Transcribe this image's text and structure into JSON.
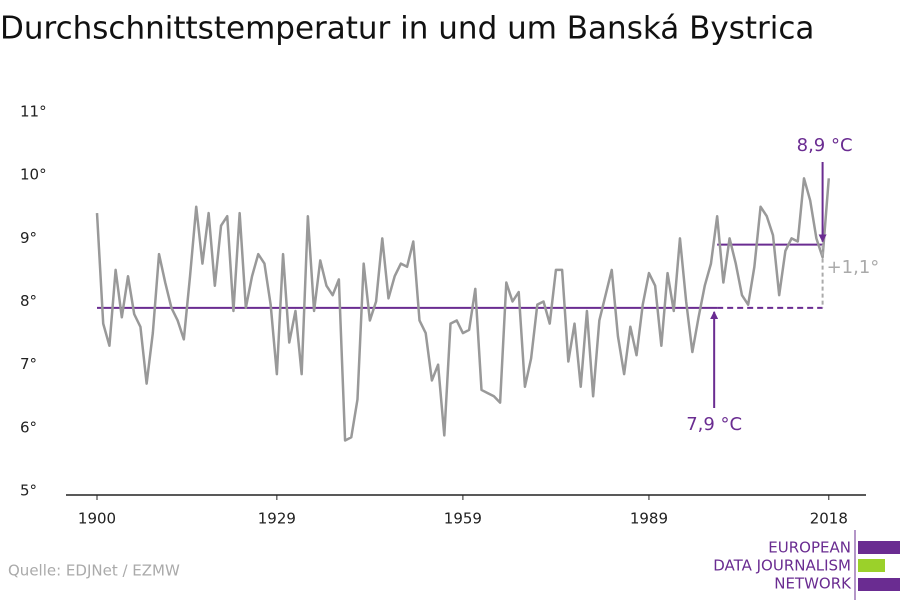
{
  "chart_data": {
    "type": "line",
    "title": "Durchschnittstemperatur in und um Banská Bystrica",
    "x": [
      1900,
      1901,
      1902,
      1903,
      1904,
      1905,
      1906,
      1907,
      1908,
      1909,
      1910,
      1911,
      1912,
      1913,
      1914,
      1915,
      1916,
      1917,
      1918,
      1919,
      1920,
      1921,
      1922,
      1923,
      1924,
      1925,
      1926,
      1927,
      1928,
      1929,
      1930,
      1931,
      1932,
      1933,
      1934,
      1935,
      1936,
      1937,
      1938,
      1939,
      1940,
      1941,
      1942,
      1943,
      1944,
      1945,
      1946,
      1947,
      1948,
      1949,
      1950,
      1951,
      1952,
      1953,
      1954,
      1955,
      1956,
      1957,
      1958,
      1959,
      1960,
      1961,
      1962,
      1963,
      1964,
      1965,
      1966,
      1967,
      1968,
      1969,
      1970,
      1971,
      1972,
      1973,
      1974,
      1975,
      1976,
      1977,
      1978,
      1979,
      1980,
      1981,
      1982,
      1983,
      1984,
      1985,
      1986,
      1987,
      1988,
      1989,
      1990,
      1991,
      1992,
      1993,
      1994,
      1995,
      1996,
      1997,
      1998,
      1999,
      2000,
      2001,
      2002,
      2003,
      2004,
      2005,
      2006,
      2007,
      2008,
      2009,
      2010,
      2011,
      2012,
      2013,
      2014,
      2015,
      2016,
      2017,
      2018
    ],
    "series": [
      {
        "color": "#999999",
        "values": [
          9.4,
          7.65,
          7.3,
          8.5,
          7.75,
          8.4,
          7.8,
          7.6,
          6.7,
          7.5,
          8.75,
          8.3,
          7.9,
          7.7,
          7.4,
          8.4,
          9.5,
          8.6,
          9.4,
          8.25,
          9.2,
          9.35,
          7.85,
          9.4,
          7.9,
          8.4,
          8.75,
          8.6,
          7.95,
          6.85,
          8.75,
          7.35,
          7.85,
          6.85,
          9.35,
          7.85,
          8.65,
          8.25,
          8.1,
          8.35,
          5.8,
          5.85,
          6.45,
          8.6,
          7.7,
          8.0,
          9.0,
          8.05,
          8.4,
          8.6,
          8.55,
          8.95,
          7.7,
          7.5,
          6.75,
          7.0,
          5.88,
          7.65,
          7.7,
          7.5,
          7.55,
          8.2,
          6.6,
          6.55,
          6.5,
          6.4,
          8.3,
          8.0,
          8.15,
          6.65,
          7.1,
          7.95,
          8.0,
          7.65,
          8.5,
          8.5,
          7.05,
          7.65,
          6.65,
          7.85,
          6.5,
          7.7,
          8.1,
          8.5,
          7.45,
          6.85,
          7.6,
          7.15,
          7.95,
          8.45,
          8.25,
          7.3,
          8.45,
          7.85,
          9.0,
          8.0,
          7.2,
          7.75,
          8.25,
          8.6,
          9.35,
          8.3,
          9.0,
          8.6,
          8.1,
          7.95,
          8.55,
          9.5,
          9.35,
          9.05,
          8.1,
          8.8,
          9.0,
          8.95,
          9.95,
          9.6,
          9.0,
          8.7,
          9.95
        ]
      }
    ],
    "xlim": [
      1895,
      2024
    ],
    "xticks": [
      1900,
      1929,
      1959,
      1989,
      2018
    ],
    "ylim": [
      5,
      11
    ],
    "yticks": [
      {
        "value": 5,
        "label": "5°"
      },
      {
        "value": 6,
        "label": "6°"
      },
      {
        "value": 7,
        "label": "7°"
      },
      {
        "value": 8,
        "label": "8°"
      },
      {
        "value": 9,
        "label": "9°"
      },
      {
        "value": 10,
        "label": "10°"
      },
      {
        "value": 11,
        "label": "11°"
      }
    ],
    "reference_lines": [
      {
        "value": 7.9,
        "label": "7,9 °C",
        "from": 1900,
        "to": 2000,
        "extend_to": 2017,
        "color": "#6a2c91"
      },
      {
        "value": 8.9,
        "label": "8,9 °C",
        "from": 2000,
        "to": 2017,
        "color": "#6a2c91"
      }
    ],
    "difference": {
      "label": "+1,1°",
      "at": 2017
    },
    "source": "Quelle: EDJNet / EZMW",
    "logo": [
      "EUROPEAN",
      "DATA JOURNALISM",
      "NETWORK"
    ]
  }
}
